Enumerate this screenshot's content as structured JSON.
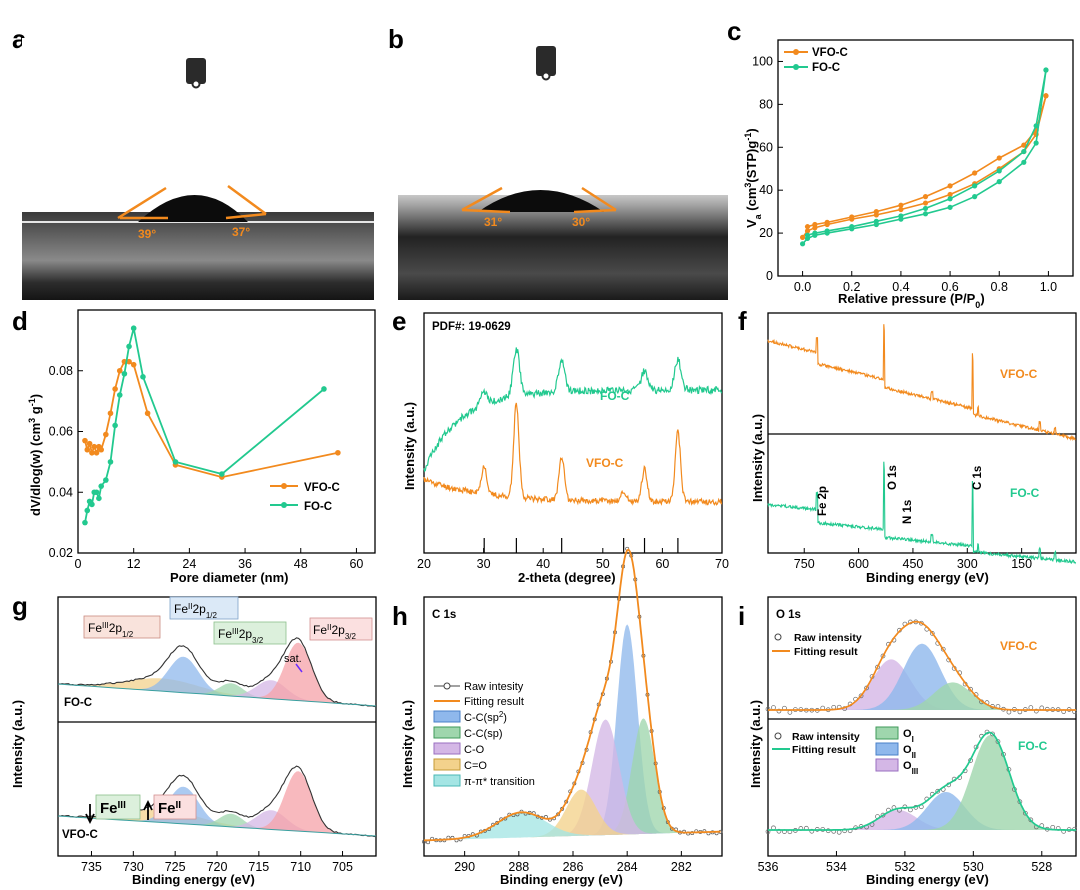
{
  "colors": {
    "orange": "#f28a1e",
    "green": "#22c98f",
    "black": "#000000",
    "red_fill": "#f6a1a8",
    "blue_fill": "#8fb8ec",
    "green_fill": "#9fd6ad",
    "purple_fill": "#d4b7e6",
    "yellow_fill": "#f3d28c",
    "cyan_fill": "#a4e5e4"
  },
  "panels": {
    "a": {
      "label": "a",
      "angle_left": "39°",
      "angle_right": "37°"
    },
    "b": {
      "label": "b",
      "angle_left": "31°",
      "angle_right": "30°"
    },
    "c": {
      "label": "c"
    },
    "d": {
      "label": "d"
    },
    "e": {
      "label": "e"
    },
    "f": {
      "label": "f"
    },
    "g": {
      "label": "g"
    },
    "h": {
      "label": "h"
    },
    "i": {
      "label": "i"
    }
  },
  "chart_data": [
    {
      "id": "c",
      "type": "line",
      "xlabel": "Relative pressure (P/P",
      "xlabel_sub": "0",
      "xlabel_end": ")",
      "ylabel": "V",
      "xlim": [
        -0.1,
        1.1
      ],
      "ylim": [
        0,
        110
      ],
      "xticks": [
        0.0,
        0.2,
        0.4,
        0.6,
        0.8,
        1.0
      ],
      "xtick_labels": [
        "0.0",
        "0.2",
        "0.4",
        "0.6",
        "0.8",
        "1.0"
      ],
      "yticks": [
        0,
        20,
        40,
        60,
        80,
        100
      ],
      "ytick_labels": [
        "0",
        "20",
        "40",
        "60",
        "80",
        "100"
      ],
      "legend": [
        "VFO-C",
        "FO-C"
      ],
      "series": [
        {
          "name": "VFO-C",
          "color": "orange",
          "adsorption": [
            [
              0.0,
              18
            ],
            [
              0.02,
              21
            ],
            [
              0.05,
              22.5
            ],
            [
              0.1,
              24
            ],
            [
              0.2,
              26.5
            ],
            [
              0.3,
              28.5
            ],
            [
              0.4,
              31
            ],
            [
              0.5,
              34
            ],
            [
              0.6,
              38
            ],
            [
              0.7,
              43
            ],
            [
              0.8,
              50
            ],
            [
              0.9,
              58
            ],
            [
              0.95,
              66
            ],
            [
              0.99,
              84
            ]
          ],
          "desorption": [
            [
              0.99,
              84
            ],
            [
              0.95,
              68
            ],
            [
              0.9,
              61
            ],
            [
              0.8,
              55
            ],
            [
              0.7,
              48
            ],
            [
              0.6,
              42
            ],
            [
              0.5,
              37
            ],
            [
              0.4,
              33
            ],
            [
              0.3,
              30
            ],
            [
              0.2,
              27.5
            ],
            [
              0.1,
              25
            ],
            [
              0.05,
              24
            ],
            [
              0.02,
              23
            ]
          ]
        },
        {
          "name": "FO-C",
          "color": "green",
          "adsorption": [
            [
              0.0,
              15
            ],
            [
              0.02,
              17.5
            ],
            [
              0.05,
              19
            ],
            [
              0.1,
              20
            ],
            [
              0.2,
              22
            ],
            [
              0.3,
              24
            ],
            [
              0.4,
              26.5
            ],
            [
              0.5,
              29
            ],
            [
              0.6,
              32
            ],
            [
              0.7,
              37
            ],
            [
              0.8,
              44
            ],
            [
              0.9,
              53
            ],
            [
              0.95,
              62
            ],
            [
              0.99,
              96
            ]
          ],
          "desorption": [
            [
              0.99,
              96
            ],
            [
              0.95,
              70
            ],
            [
              0.9,
              58
            ],
            [
              0.8,
              49
            ],
            [
              0.7,
              42
            ],
            [
              0.6,
              36
            ],
            [
              0.5,
              31.5
            ],
            [
              0.4,
              28
            ],
            [
              0.3,
              25.5
            ],
            [
              0.2,
              23
            ],
            [
              0.1,
              21
            ],
            [
              0.05,
              20
            ],
            [
              0.02,
              19
            ]
          ]
        }
      ]
    },
    {
      "id": "d",
      "type": "line",
      "xlabel": "Pore diameter (nm)",
      "ylabel": "dV/dlog(w) (cm",
      "xlim": [
        0,
        64
      ],
      "ylim": [
        0.02,
        0.1
      ],
      "xticks": [
        0,
        12,
        24,
        36,
        48,
        60
      ],
      "xtick_labels": [
        "0",
        "12",
        "24",
        "36",
        "48",
        "60"
      ],
      "yticks": [
        0.02,
        0.04,
        0.06,
        0.08
      ],
      "ytick_labels": [
        "0.02",
        "0.04",
        "0.06",
        "0.08"
      ],
      "legend": [
        "VFO-C",
        "FO-C"
      ],
      "series": [
        {
          "name": "VFO-C",
          "color": "orange",
          "points": [
            [
              1.5,
              0.057
            ],
            [
              2,
              0.054
            ],
            [
              2.5,
              0.056
            ],
            [
              3,
              0.053
            ],
            [
              3.5,
              0.055
            ],
            [
              4,
              0.053
            ],
            [
              4.5,
              0.055
            ],
            [
              5,
              0.054
            ],
            [
              6,
              0.059
            ],
            [
              7,
              0.066
            ],
            [
              8,
              0.074
            ],
            [
              9,
              0.08
            ],
            [
              10,
              0.083
            ],
            [
              11,
              0.083
            ],
            [
              12,
              0.082
            ],
            [
              15,
              0.066
            ],
            [
              21,
              0.049
            ],
            [
              31,
              0.045
            ],
            [
              56,
              0.053
            ]
          ]
        },
        {
          "name": "FO-C",
          "color": "green",
          "points": [
            [
              1.5,
              0.03
            ],
            [
              2,
              0.034
            ],
            [
              2.5,
              0.037
            ],
            [
              3,
              0.036
            ],
            [
              3.5,
              0.04
            ],
            [
              4,
              0.04
            ],
            [
              4.5,
              0.038
            ],
            [
              5,
              0.042
            ],
            [
              6,
              0.044
            ],
            [
              7,
              0.05
            ],
            [
              8,
              0.062
            ],
            [
              9,
              0.072
            ],
            [
              10,
              0.079
            ],
            [
              11,
              0.088
            ],
            [
              12,
              0.094
            ],
            [
              14,
              0.078
            ],
            [
              21,
              0.05
            ],
            [
              31,
              0.046
            ],
            [
              53,
              0.074
            ]
          ]
        }
      ]
    },
    {
      "id": "e",
      "type": "line",
      "xlabel": "2-theta (degree)",
      "ylabel": "Intensity (a.u.)",
      "xlim": [
        20,
        70
      ],
      "xticks": [
        20,
        30,
        40,
        50,
        60,
        70
      ],
      "xtick_labels": [
        "20",
        "30",
        "40",
        "50",
        "60",
        "70"
      ],
      "annotation": "PDF#: 19-0629",
      "ref_lines": [
        30.1,
        35.5,
        43.1,
        53.5,
        57.0,
        62.6
      ],
      "series": [
        {
          "name": "FO-C",
          "color": "green",
          "label": "FO-C",
          "peaks": [
            [
              30.1,
              0.25
            ],
            [
              35.5,
              0.85
            ],
            [
              43.1,
              0.55
            ],
            [
              57.0,
              0.35
            ],
            [
              62.6,
              0.55
            ]
          ]
        },
        {
          "name": "VFO-C",
          "color": "orange",
          "label": "VFO-C",
          "peaks": [
            [
              30.1,
              0.3
            ],
            [
              35.5,
              1.0
            ],
            [
              43.1,
              0.45
            ],
            [
              53.5,
              0.1
            ],
            [
              57.0,
              0.35
            ],
            [
              62.6,
              0.75
            ]
          ]
        }
      ]
    },
    {
      "id": "f",
      "type": "line",
      "xlabel": "Binding energy (eV)",
      "ylabel": "Intensity (a.u.)",
      "xlim": [
        850,
        0
      ],
      "xticks": [
        750,
        600,
        450,
        300,
        150
      ],
      "xtick_labels": [
        "750",
        "600",
        "450",
        "300",
        "150"
      ],
      "peak_labels": [
        "Fe 2p",
        "O 1s",
        "N 1s",
        "C 1s"
      ],
      "series": [
        {
          "name": "VFO-C",
          "color": "orange",
          "label": "VFO-C"
        },
        {
          "name": "FO-C",
          "color": "green",
          "label": "FO-C"
        }
      ]
    },
    {
      "id": "g",
      "type": "line",
      "xlabel": "Binding energy (eV)",
      "ylabel": "Intensity (a.u.)",
      "xlim": [
        739,
        701
      ],
      "xticks": [
        735,
        730,
        725,
        720,
        715,
        710,
        705
      ],
      "xtick_labels": [
        "735",
        "730",
        "725",
        "720",
        "715",
        "710",
        "705"
      ],
      "components": [
        {
          "name": "Fe3+ 2p1/2",
          "center": 726,
          "color": "yellow_fill"
        },
        {
          "name": "Fe2+ 2p1/2",
          "center": 723.5,
          "color": "blue_fill"
        },
        {
          "name": "Fe3+ 2p3/2",
          "center": 718.3,
          "color": "green_fill"
        },
        {
          "name": "sat.",
          "center": 713.8,
          "color": "purple_fill"
        },
        {
          "name": "Fe2+ 2p3/2",
          "center": 710.3,
          "color": "red_fill"
        }
      ],
      "labels": {
        "fe3_p12": "Fe",
        "fe3_p12_sup": "III",
        "fe3_p12_rest": "2p",
        "fe3_p12_sub": "1/2",
        "fe2_p12": "Fe",
        "fe2_p12_sup": "II",
        "fe2_p12_rest": "2p",
        "fe2_p12_sub": "1/2",
        "fe3_p32": "Fe",
        "fe3_p32_sup": "III",
        "fe3_p32_rest": "2p",
        "fe3_p32_sub": "3/2",
        "fe2_p32": "Fe",
        "fe2_p32_sup": "II",
        "fe2_p32_rest": "2p",
        "fe2_p32_sub": "3/2",
        "sat": "sat.",
        "fo_c": "FO-C",
        "vfo_c": "VFO-C",
        "fe_iii_box": "Fe",
        "fe_iii_box_sup": "III",
        "fe_ii_box": "Fe",
        "fe_ii_box_sup": "II"
      }
    },
    {
      "id": "h",
      "type": "line",
      "title": "C 1s",
      "xlabel": "Binding energy (eV)",
      "ylabel": "Intensity (a.u.)",
      "xlim": [
        291.5,
        280.5
      ],
      "xticks": [
        290,
        288,
        286,
        284,
        282
      ],
      "xtick_labels": [
        "290",
        "288",
        "286",
        "284",
        "282"
      ],
      "legend": [
        "Raw intesity",
        "Fitting result",
        "C-C(sp",
        "C-C(sp)",
        "C-O",
        "C=O",
        "π-π* transition"
      ],
      "legend_sup": "2",
      "legend_close": ")",
      "components": [
        {
          "name": "C-C(sp2)",
          "center": 284.0,
          "amp": 1.0,
          "color": "blue_fill"
        },
        {
          "name": "C-C(sp)",
          "center": 283.4,
          "amp": 0.55,
          "color": "green_fill"
        },
        {
          "name": "C-O",
          "center": 284.8,
          "amp": 0.55,
          "color": "purple_fill"
        },
        {
          "name": "C=O",
          "center": 285.7,
          "amp": 0.22,
          "color": "yellow_fill"
        },
        {
          "name": "π-π* transition",
          "center": 287.9,
          "amp": 0.12,
          "color": "cyan_fill"
        }
      ]
    },
    {
      "id": "i",
      "type": "line",
      "title": "O 1s",
      "xlabel": "Binding energy (eV)",
      "ylabel": "Intensity (a.u.)",
      "xlim": [
        536,
        527
      ],
      "xticks": [
        536,
        534,
        532,
        530,
        528
      ],
      "xtick_labels": [
        "536",
        "534",
        "532",
        "530",
        "528"
      ],
      "legend_top": [
        "Raw intensity",
        "Fitting result"
      ],
      "legend_bottom": [
        "Raw intensity",
        "Fitting result"
      ],
      "comp_legend": [
        "O",
        "O",
        "O"
      ],
      "comp_legend_sub": [
        "I",
        "II",
        "III"
      ],
      "series_labels": [
        "VFO-C",
        "FO-C"
      ],
      "components_vfo": [
        {
          "name": "OIII",
          "center": 532.4,
          "amp": 0.55,
          "color": "purple_fill"
        },
        {
          "name": "OII",
          "center": 531.5,
          "amp": 0.72,
          "color": "blue_fill"
        },
        {
          "name": "OI",
          "center": 530.6,
          "amp": 0.3,
          "color": "green_fill"
        }
      ],
      "components_fo": [
        {
          "name": "OIII",
          "center": 532.2,
          "amp": 0.2,
          "color": "purple_fill"
        },
        {
          "name": "OII",
          "center": 530.8,
          "amp": 0.38,
          "color": "blue_fill"
        },
        {
          "name": "OI",
          "center": 529.5,
          "amp": 0.95,
          "color": "green_fill"
        }
      ]
    }
  ]
}
